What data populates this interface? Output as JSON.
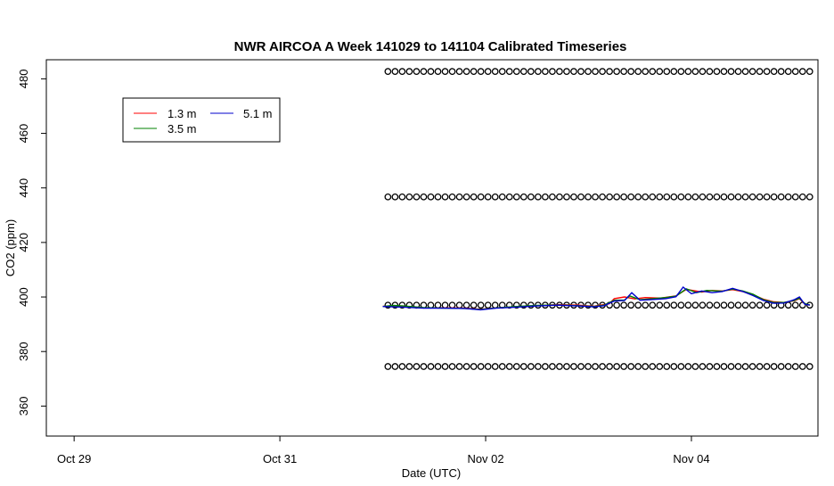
{
  "chart_data": {
    "type": "line",
    "title": "NWR AIRCOA A  Week 141029 to 141104  Calibrated Timeseries",
    "xlabel": "Date (UTC)",
    "ylabel": "CO2 (ppm)",
    "x_ticks": [
      {
        "day": 0,
        "label": "Oct 29"
      },
      {
        "day": 2,
        "label": "Oct 31"
      },
      {
        "day": 4,
        "label": "Nov 02"
      },
      {
        "day": 6,
        "label": "Nov 04"
      }
    ],
    "y_ticks": [
      360,
      380,
      400,
      420,
      440,
      460,
      480
    ],
    "xlim": [
      -0.27,
      7.23
    ],
    "ylim": [
      349,
      487
    ],
    "grid": false,
    "legend_position": "top-left",
    "series": [
      {
        "name": "1.3 m",
        "color": "#ff0000",
        "points": [
          [
            3.0,
            396.6
          ],
          [
            3.2,
            396.4
          ],
          [
            3.4,
            396.0
          ],
          [
            3.6,
            396.0
          ],
          [
            3.8,
            395.9
          ],
          [
            3.95,
            395.5
          ],
          [
            4.1,
            396.0
          ],
          [
            4.3,
            396.4
          ],
          [
            4.5,
            396.8
          ],
          [
            4.7,
            397.2
          ],
          [
            4.9,
            397.0
          ],
          [
            5.05,
            396.6
          ],
          [
            5.1,
            396.9
          ],
          [
            5.2,
            397.5
          ],
          [
            5.25,
            399.4
          ],
          [
            5.35,
            400.0
          ],
          [
            5.45,
            399.3
          ],
          [
            5.55,
            399.8
          ],
          [
            5.7,
            399.6
          ],
          [
            5.85,
            400.4
          ],
          [
            5.95,
            402.8
          ],
          [
            6.1,
            401.8
          ],
          [
            6.2,
            402.4
          ],
          [
            6.3,
            402.2
          ],
          [
            6.4,
            402.7
          ],
          [
            6.5,
            402.0
          ],
          [
            6.6,
            400.8
          ],
          [
            6.7,
            399.2
          ],
          [
            6.8,
            398.2
          ],
          [
            6.9,
            398.0
          ],
          [
            7.0,
            398.6
          ],
          [
            7.05,
            399.4
          ],
          [
            7.1,
            397.5
          ],
          [
            7.15,
            397.0
          ]
        ]
      },
      {
        "name": "3.5 m",
        "color": "#008000",
        "points": [
          [
            3.0,
            396.5
          ],
          [
            3.1,
            396.9
          ],
          [
            3.2,
            396.7
          ],
          [
            3.4,
            396.1
          ],
          [
            3.6,
            395.9
          ],
          [
            3.8,
            395.8
          ],
          [
            3.95,
            395.4
          ],
          [
            4.1,
            396.0
          ],
          [
            4.3,
            396.5
          ],
          [
            4.5,
            396.9
          ],
          [
            4.7,
            397.1
          ],
          [
            4.9,
            396.8
          ],
          [
            5.05,
            396.5
          ],
          [
            5.15,
            397.0
          ],
          [
            5.25,
            398.8
          ],
          [
            5.35,
            398.9
          ],
          [
            5.4,
            400.4
          ],
          [
            5.5,
            399.0
          ],
          [
            5.6,
            399.3
          ],
          [
            5.75,
            399.8
          ],
          [
            5.85,
            400.3
          ],
          [
            5.95,
            403.0
          ],
          [
            6.05,
            401.6
          ],
          [
            6.15,
            402.4
          ],
          [
            6.3,
            402.1
          ],
          [
            6.4,
            402.9
          ],
          [
            6.5,
            402.2
          ],
          [
            6.6,
            401.0
          ],
          [
            6.7,
            399.0
          ],
          [
            6.8,
            398.0
          ],
          [
            6.9,
            398.0
          ],
          [
            7.0,
            398.7
          ],
          [
            7.05,
            399.6
          ],
          [
            7.1,
            397.6
          ],
          [
            7.15,
            397.1
          ]
        ]
      },
      {
        "name": "5.1 m",
        "color": "#0000cc",
        "points": [
          [
            3.0,
            396.5
          ],
          [
            3.2,
            396.3
          ],
          [
            3.4,
            395.9
          ],
          [
            3.6,
            395.9
          ],
          [
            3.8,
            395.8
          ],
          [
            3.95,
            395.3
          ],
          [
            4.1,
            395.9
          ],
          [
            4.3,
            396.3
          ],
          [
            4.5,
            396.7
          ],
          [
            4.7,
            397.0
          ],
          [
            4.9,
            396.7
          ],
          [
            5.05,
            396.4
          ],
          [
            5.15,
            396.8
          ],
          [
            5.25,
            398.5
          ],
          [
            5.35,
            398.7
          ],
          [
            5.42,
            401.6
          ],
          [
            5.5,
            398.8
          ],
          [
            5.6,
            399.0
          ],
          [
            5.75,
            399.4
          ],
          [
            5.85,
            400.1
          ],
          [
            5.92,
            403.6
          ],
          [
            6.0,
            401.2
          ],
          [
            6.1,
            402.2
          ],
          [
            6.2,
            401.6
          ],
          [
            6.3,
            402.0
          ],
          [
            6.4,
            403.2
          ],
          [
            6.5,
            402.0
          ],
          [
            6.6,
            400.5
          ],
          [
            6.7,
            398.7
          ],
          [
            6.8,
            397.7
          ],
          [
            6.9,
            397.8
          ],
          [
            7.0,
            399.0
          ],
          [
            7.05,
            400.0
          ],
          [
            7.1,
            397.4
          ],
          [
            7.15,
            397.0
          ]
        ]
      },
      {
        "name": "",
        "style": "markers",
        "x_start": 3.05,
        "x_end": 7.15,
        "count": 60,
        "levels": [
          482.7,
          436.7,
          397.0,
          374.5
        ]
      }
    ]
  }
}
